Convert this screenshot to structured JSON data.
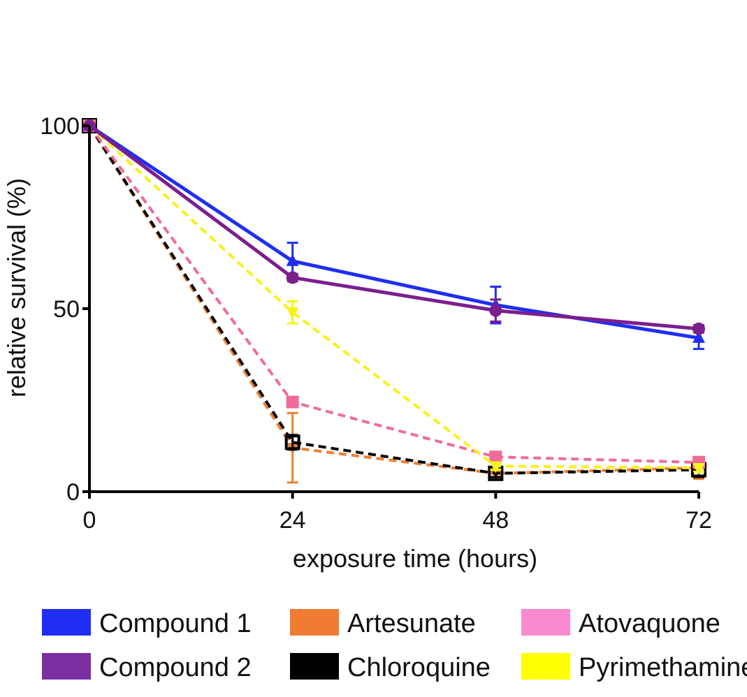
{
  "chart_data": {
    "type": "line",
    "title": "",
    "xlabel": "exposure time (hours)",
    "ylabel": "relative survival (%)",
    "x": [
      0,
      24,
      48,
      72
    ],
    "xticks": [
      "0",
      "24",
      "48",
      "72"
    ],
    "yticks": [
      "0",
      "50",
      "100"
    ],
    "xlim": [
      0,
      72
    ],
    "ylim": [
      0,
      100
    ],
    "grid": false,
    "legend_position": "bottom",
    "series": [
      {
        "name": "Compound 1",
        "values": [
          100,
          63,
          51,
          42
        ],
        "errors": [
          0,
          5,
          5,
          3
        ],
        "color": "#1f2ef2",
        "line": "solid",
        "marker": "triangle"
      },
      {
        "name": "Compound 2",
        "values": [
          100,
          58.5,
          49.5,
          44.5
        ],
        "errors": [
          0,
          1,
          3,
          1
        ],
        "color": "#7b1f8f",
        "line": "solid",
        "marker": "circle"
      },
      {
        "name": "Artesunate",
        "values": [
          100,
          12,
          5,
          6.5
        ],
        "errors": [
          0,
          9.5,
          1,
          3
        ],
        "color": "#f07f2f",
        "line": "dashed",
        "marker": "triangle-down"
      },
      {
        "name": "Chloroquine",
        "values": [
          100,
          13.5,
          5,
          6
        ],
        "errors": [
          0,
          2,
          1,
          2
        ],
        "color": "#000000",
        "line": "dashed",
        "marker": "square-open"
      },
      {
        "name": "Atovaquone",
        "values": [
          100,
          24.5,
          9.5,
          8
        ],
        "errors": [
          0,
          1,
          1,
          1
        ],
        "color": "#f06a9c",
        "line": "dashed",
        "marker": "square"
      },
      {
        "name": "Pyrimethamine",
        "values": [
          100,
          49,
          7,
          6.5
        ],
        "errors": [
          0,
          3,
          1,
          1
        ],
        "color": "#f7f21a",
        "line": "dashed",
        "marker": "triangle-down"
      }
    ],
    "legend": {
      "items": [
        {
          "label": "Compound 1",
          "swatch": "#1f2ef2"
        },
        {
          "label": "Compound 2",
          "swatch": "#7b2fa0"
        },
        {
          "label": "Artesunate",
          "swatch": "#ef7c32"
        },
        {
          "label": "Chloroquine",
          "swatch": "#000000"
        },
        {
          "label": "Atovaquone",
          "swatch": "#f98ad0"
        },
        {
          "label": "Pyrimethamine",
          "swatch": "#ffff00"
        }
      ]
    }
  }
}
